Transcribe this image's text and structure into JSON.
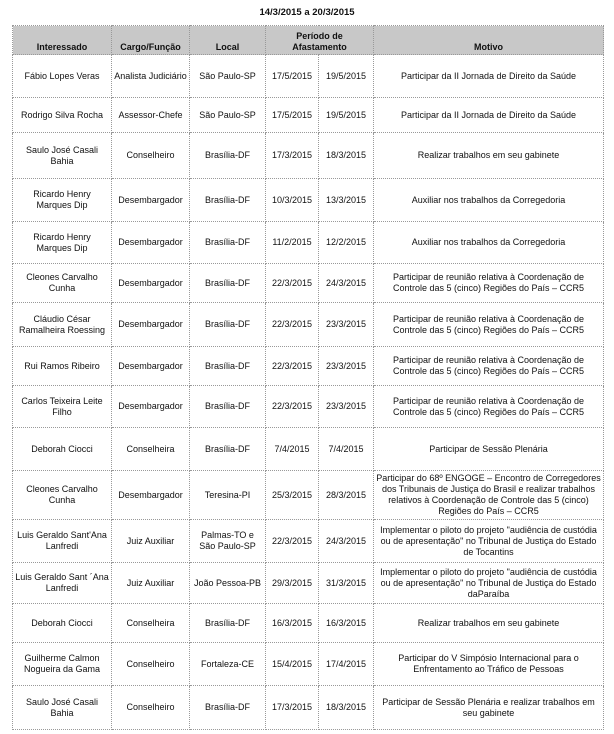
{
  "title": "14/3/2015 a 20/3/2015",
  "headers": [
    "Interessado",
    "Cargo/Função",
    "Local",
    "Período de Afastamento",
    "Motivo"
  ],
  "rows": [
    [
      "Fábio Lopes Veras",
      "Analista Judiciário",
      "São Paulo-SP",
      "17/5/2015",
      "19/5/2015",
      "Participar da II Jornada de Direito da Saúde"
    ],
    [
      "Rodrigo Silva Rocha",
      "Assessor-Chefe",
      "São Paulo-SP",
      "17/5/2015",
      "19/5/2015",
      "Participar da II Jornada de Direito da Saúde"
    ],
    [
      "Saulo José Casali Bahia",
      "Conselheiro",
      "Brasília-DF",
      "17/3/2015",
      "18/3/2015",
      "Realizar trabalhos em seu gabinete"
    ],
    [
      "Ricardo Henry Marques Dip",
      "Desembargador",
      "Brasília-DF",
      "10/3/2015",
      "13/3/2015",
      "Auxiliar nos trabalhos da Corregedoria"
    ],
    [
      "Ricardo Henry Marques Dip",
      "Desembargador",
      "Brasília-DF",
      "11/2/2015",
      "12/2/2015",
      "Auxiliar nos trabalhos da Corregedoria"
    ],
    [
      "Cleones Carvalho Cunha",
      "Desembargador",
      "Brasília-DF",
      "22/3/2015",
      "24/3/2015",
      "Participar de reunião relativa à Coordenação de Controle das 5 (cinco) Regiões do País – CCR5"
    ],
    [
      "Cláudio César Ramalheira Roessing",
      "Desembargador",
      "Brasília-DF",
      "22/3/2015",
      "23/3/2015",
      "Participar de reunião relativa à Coordenação de Controle das 5 (cinco) Regiões do País – CCR5"
    ],
    [
      "Rui Ramos Ribeiro",
      "Desembargador",
      "Brasília-DF",
      "22/3/2015",
      "23/3/2015",
      "Participar de reunião relativa à Coordenação de Controle das 5 (cinco) Regiões do País – CCR5"
    ],
    [
      "Carlos Teixeira Leite Filho",
      "Desembargador",
      "Brasília-DF",
      "22/3/2015",
      "23/3/2015",
      "Participar de reunião relativa à Coordenação de Controle das 5 (cinco) Regiões do País – CCR5"
    ],
    [
      "Deborah Ciocci",
      "Conselheira",
      "Brasília-DF",
      "7/4/2015",
      "7/4/2015",
      "Participar de Sessão Plenária"
    ],
    [
      "Cleones Carvalho Cunha",
      "Desembargador",
      "Teresina-PI",
      "25/3/2015",
      "28/3/2015",
      "Participar do 68º ENGOGE – Encontro de Corregedores dos Tribunais de Justiça do Brasil e realizar trabalhos relativos à Coordenação de Controle das 5 (cinco) Regiões do País – CCR5"
    ],
    [
      "Luis Geraldo Sant'Ana Lanfredi",
      "Juiz Auxiliar",
      "Palmas-TO e São Paulo-SP",
      "22/3/2015",
      "24/3/2015",
      "Implementar o piloto do projeto \"audiência de custódia ou de apresentação\" no Tribunal de Justiça do Estado de Tocantins"
    ],
    [
      "Luis Geraldo Sant ´Ana Lanfredi",
      "Juiz Auxiliar",
      "João Pessoa-PB",
      "29/3/2015",
      "31/3/2015",
      "Implementar o piloto do projeto \"audiência de custódia ou de apresentação\" no Tribunal de Justiça do Estado daParaíba"
    ],
    [
      "Deborah Ciocci",
      "Conselheira",
      "Brasília-DF",
      "16/3/2015",
      "16/3/2015",
      "Realizar trabalhos em seu gabinete"
    ],
    [
      "Guilherme Calmon Nogueira da Gama",
      "Conselheiro",
      "Fortaleza-CE",
      "15/4/2015",
      "17/4/2015",
      "Participar do V Simpósio Internacional para o Enfrentamento ao Tráfico de Pessoas"
    ],
    [
      "Saulo José Casali Bahia",
      "Conselheiro",
      "Brasília-DF",
      "17/3/2015",
      "18/3/2015",
      "Participar de Sessão Plenária e realizar trabalhos em seu gabinete"
    ]
  ]
}
